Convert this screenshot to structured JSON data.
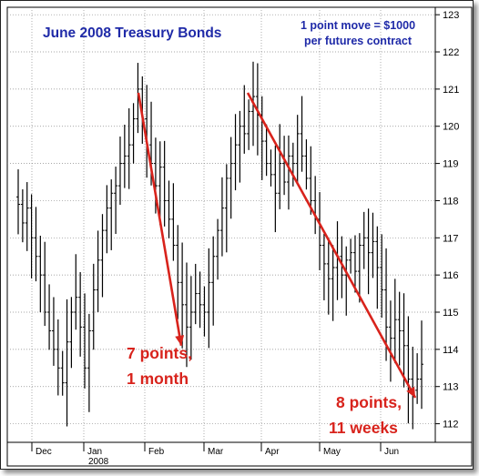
{
  "chart_data": {
    "type": "ohlc",
    "title": "June 2008 Treasury Bonds",
    "subtitle_lines": [
      "1 point move = $1000",
      "per futures contract"
    ],
    "ylim": [
      111.5,
      123.2
    ],
    "y_ticks": [
      112,
      113,
      114,
      115,
      116,
      117,
      118,
      119,
      120,
      121,
      122,
      123
    ],
    "x_months": [
      "Dec",
      "Jan",
      "Feb",
      "Mar",
      "Apr",
      "May",
      "Jun"
    ],
    "x_year_label": "2008",
    "grid": true,
    "annotations": [
      {
        "lines": [
          "7 points,",
          "1 month"
        ]
      },
      {
        "lines": [
          "8 points,",
          "11 weeks"
        ]
      }
    ],
    "trend_arrows": [
      {
        "from_price": 120.9,
        "to_price": 114.1
      },
      {
        "from_price": 120.9,
        "to_price": 112.7
      }
    ],
    "colors": {
      "bars": "#000000",
      "arrows": "#d8231c",
      "title": "#1f2aa8",
      "grid": "#8a8a8a"
    },
    "price_path": [
      117.9,
      117.4,
      117.8,
      117.0,
      116.5,
      116.0,
      115.0,
      114.5,
      114.0,
      113.5,
      113.1,
      114.2,
      115.0,
      115.4,
      114.6,
      113.5,
      114.5,
      115.6,
      116.4,
      117.2,
      117.8,
      118.2,
      118.4,
      119.0,
      119.2,
      119.5,
      120.2,
      121.0,
      120.2,
      119.5,
      119.0,
      118.4,
      118.9,
      118.0,
      117.5,
      116.8,
      115.8,
      115.2,
      114.6,
      115.0,
      115.5,
      115.2,
      115.0,
      115.8,
      116.5,
      117.2,
      117.8,
      118.6,
      119.0,
      119.5,
      120.0,
      119.8,
      120.4,
      120.8,
      120.3,
      119.6,
      119.0,
      118.7,
      118.2,
      119.0,
      118.5,
      119.2,
      119.0,
      119.8,
      119.2,
      118.6,
      118.0,
      117.5,
      116.8,
      116.3,
      115.9,
      116.2,
      116.5,
      116.0,
      116.4,
      116.6,
      116.1,
      116.8,
      117.0,
      116.6,
      116.9,
      116.2,
      115.6,
      114.6,
      114.3,
      114.8,
      114.5,
      114.1,
      113.2,
      112.9,
      113.2,
      113.6
    ]
  }
}
